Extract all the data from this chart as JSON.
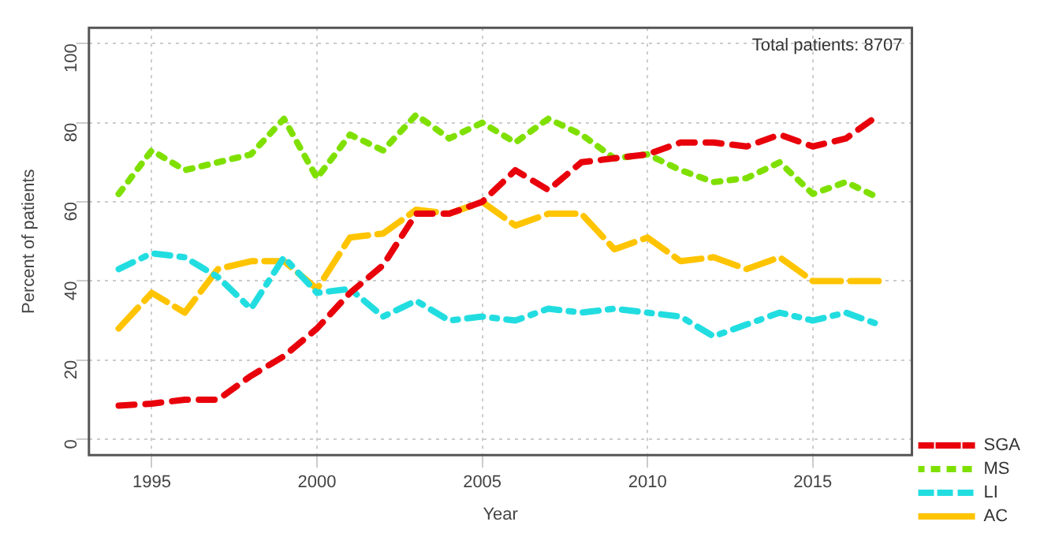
{
  "chart_data": {
    "type": "line",
    "xlabel": "Year",
    "ylabel": "Percent of patients",
    "x": [
      1994,
      1995,
      1996,
      1997,
      1998,
      1999,
      2000,
      2001,
      2002,
      2003,
      2004,
      2005,
      2006,
      2007,
      2008,
      2009,
      2010,
      2011,
      2012,
      2013,
      2014,
      2015,
      2016,
      2017
    ],
    "series": [
      {
        "name": "SGA",
        "color": "#e8000b",
        "line_style": "dashed",
        "values": [
          8.5,
          9,
          10,
          10,
          16,
          21,
          28,
          37,
          44,
          57,
          57,
          60,
          68,
          63,
          70,
          71,
          72,
          75,
          75,
          74,
          77,
          74,
          76,
          82
        ]
      },
      {
        "name": "MS",
        "color": "#7fe000",
        "line_style": "dotted",
        "values": [
          62,
          73,
          68,
          70,
          72,
          81,
          66,
          77,
          73,
          82,
          76,
          80,
          75,
          81,
          77,
          71,
          72,
          68,
          65,
          66,
          70,
          62,
          65,
          61
        ]
      },
      {
        "name": "LI",
        "color": "#22dde0",
        "line_style": "dashdot",
        "values": [
          43,
          47,
          46,
          41,
          33,
          46,
          37,
          38,
          31,
          35,
          30,
          31,
          30,
          33,
          32,
          33,
          32,
          31,
          26,
          29,
          32,
          30,
          32,
          29
        ]
      },
      {
        "name": "AC",
        "color": "#ffc400",
        "line_style": "longdash",
        "values": [
          28,
          37,
          32,
          43,
          45,
          45,
          38,
          51,
          52,
          58,
          57,
          60,
          54,
          57,
          57,
          48,
          51,
          45,
          46,
          43,
          46,
          40,
          40,
          40
        ]
      }
    ],
    "xlim": [
      1993.1,
      2018
    ],
    "xticks": [
      1995,
      2000,
      2005,
      2010,
      2015
    ],
    "ylim": [
      -4,
      104
    ],
    "yticks": [
      0,
      20,
      40,
      60,
      80,
      100
    ],
    "grid": true,
    "legend": "bottom right",
    "marker": "none",
    "annotations": [
      "Total patients: 8707"
    ]
  }
}
